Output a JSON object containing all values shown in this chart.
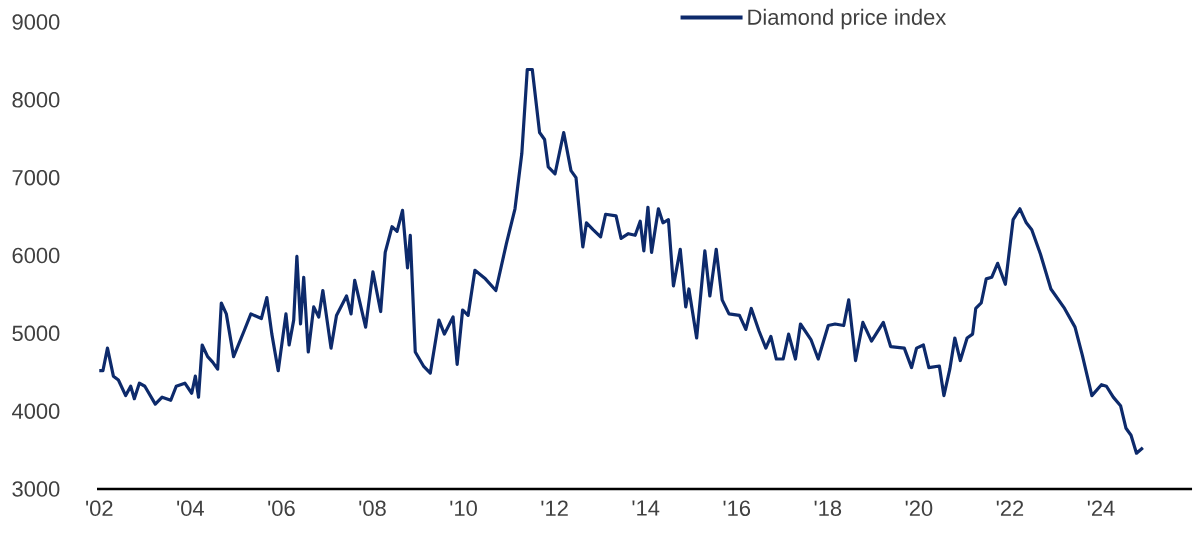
{
  "chart_data": {
    "type": "line",
    "x": [
      2002.0,
      2002.08,
      2002.18,
      2002.31,
      2002.42,
      2002.58,
      2002.69,
      2002.77,
      2002.88,
      2003.0,
      2003.23,
      2003.38,
      2003.57,
      2003.69,
      2003.88,
      2004.03,
      2004.11,
      2004.18,
      2004.26,
      2004.38,
      2004.49,
      2004.6,
      2004.68,
      2004.79,
      2004.95,
      2005.18,
      2005.33,
      2005.56,
      2005.68,
      2005.79,
      2005.93,
      2006.1,
      2006.17,
      2006.27,
      2006.34,
      2006.42,
      2006.49,
      2006.59,
      2006.71,
      2006.82,
      2006.91,
      2007.09,
      2007.21,
      2007.43,
      2007.53,
      2007.61,
      2007.85,
      2008.01,
      2008.18,
      2008.28,
      2008.43,
      2008.54,
      2008.66,
      2008.77,
      2008.83,
      2008.94,
      2009.12,
      2009.27,
      2009.46,
      2009.58,
      2009.77,
      2009.86,
      2009.98,
      2010.1,
      2010.25,
      2010.48,
      2010.71,
      2010.94,
      2011.13,
      2011.28,
      2011.4,
      2011.51,
      2011.67,
      2011.78,
      2011.86,
      2012.01,
      2012.2,
      2012.36,
      2012.47,
      2012.62,
      2012.7,
      2012.85,
      2013.01,
      2013.12,
      2013.35,
      2013.46,
      2013.62,
      2013.77,
      2013.88,
      2013.96,
      2014.05,
      2014.13,
      2014.28,
      2014.38,
      2014.5,
      2014.61,
      2014.76,
      2014.88,
      2014.95,
      2015.12,
      2015.3,
      2015.41,
      2015.55,
      2015.68,
      2015.83,
      2016.06,
      2016.2,
      2016.32,
      2016.49,
      2016.64,
      2016.75,
      2016.87,
      2017.02,
      2017.14,
      2017.29,
      2017.4,
      2017.63,
      2017.79,
      2018.01,
      2018.16,
      2018.35,
      2018.46,
      2018.61,
      2018.77,
      2018.96,
      2019.22,
      2019.38,
      2019.68,
      2019.84,
      2019.95,
      2020.1,
      2020.22,
      2020.45,
      2020.55,
      2020.68,
      2020.79,
      2020.91,
      2021.06,
      2021.18,
      2021.25,
      2021.37,
      2021.48,
      2021.6,
      2021.73,
      2021.9,
      2022.07,
      2022.22,
      2022.36,
      2022.48,
      2022.67,
      2022.9,
      2023.2,
      2023.43,
      2023.59,
      2023.8,
      2024.01,
      2024.12,
      2024.27,
      2024.43,
      2024.55,
      2024.66,
      2024.78,
      2024.92
    ],
    "series": [
      {
        "name": "Diamond price index",
        "color": "#0d2a6b",
        "values": [
          4520,
          4520,
          4810,
          4450,
          4400,
          4200,
          4320,
          4160,
          4360,
          4320,
          4090,
          4180,
          4140,
          4320,
          4360,
          4230,
          4450,
          4180,
          4850,
          4700,
          4630,
          4540,
          5390,
          5250,
          4700,
          5030,
          5250,
          5190,
          5460,
          4990,
          4520,
          5250,
          4850,
          5170,
          5990,
          5120,
          5720,
          4760,
          5340,
          5210,
          5550,
          4810,
          5230,
          5480,
          5250,
          5680,
          5080,
          5790,
          5280,
          6040,
          6370,
          6310,
          6580,
          5840,
          6260,
          4760,
          4580,
          4490,
          5170,
          4990,
          5210,
          4600,
          5300,
          5230,
          5810,
          5700,
          5550,
          6150,
          6600,
          7310,
          8390,
          8390,
          7580,
          7490,
          7140,
          7050,
          7580,
          7090,
          7000,
          6110,
          6420,
          6330,
          6240,
          6530,
          6510,
          6220,
          6280,
          6260,
          6440,
          6060,
          6620,
          6040,
          6600,
          6420,
          6460,
          5610,
          6080,
          5340,
          5570,
          4940,
          6060,
          5480,
          6080,
          5430,
          5250,
          5230,
          5050,
          5320,
          5030,
          4810,
          4960,
          4670,
          4670,
          4990,
          4670,
          5120,
          4920,
          4670,
          5100,
          5120,
          5100,
          5430,
          4650,
          5140,
          4900,
          5140,
          4830,
          4810,
          4560,
          4810,
          4850,
          4560,
          4580,
          4200,
          4540,
          4940,
          4650,
          4940,
          4990,
          5320,
          5390,
          5700,
          5720,
          5900,
          5630,
          6460,
          6600,
          6420,
          6330,
          6020,
          5570,
          5320,
          5080,
          4720,
          4200,
          4340,
          4320,
          4180,
          4070,
          3780,
          3690,
          3460,
          3530
        ]
      }
    ],
    "xlim": [
      2001.95,
      2026.0
    ],
    "xticks": [
      {
        "value": 2002,
        "label": "'02"
      },
      {
        "value": 2004,
        "label": "'04"
      },
      {
        "value": 2006,
        "label": "'06"
      },
      {
        "value": 2008,
        "label": "'08"
      },
      {
        "value": 2010,
        "label": "'10"
      },
      {
        "value": 2012,
        "label": "'12"
      },
      {
        "value": 2014,
        "label": "'14"
      },
      {
        "value": 2016,
        "label": "'16"
      },
      {
        "value": 2018,
        "label": "'18"
      },
      {
        "value": 2020,
        "label": "'20"
      },
      {
        "value": 2022,
        "label": "'22"
      },
      {
        "value": 2024,
        "label": "'24"
      }
    ],
    "ylim": [
      3000,
      9000
    ],
    "yticks": [
      3000,
      4000,
      5000,
      6000,
      7000,
      8000,
      9000
    ],
    "legend": "top right",
    "marker": "none",
    "line_style": "solid"
  }
}
